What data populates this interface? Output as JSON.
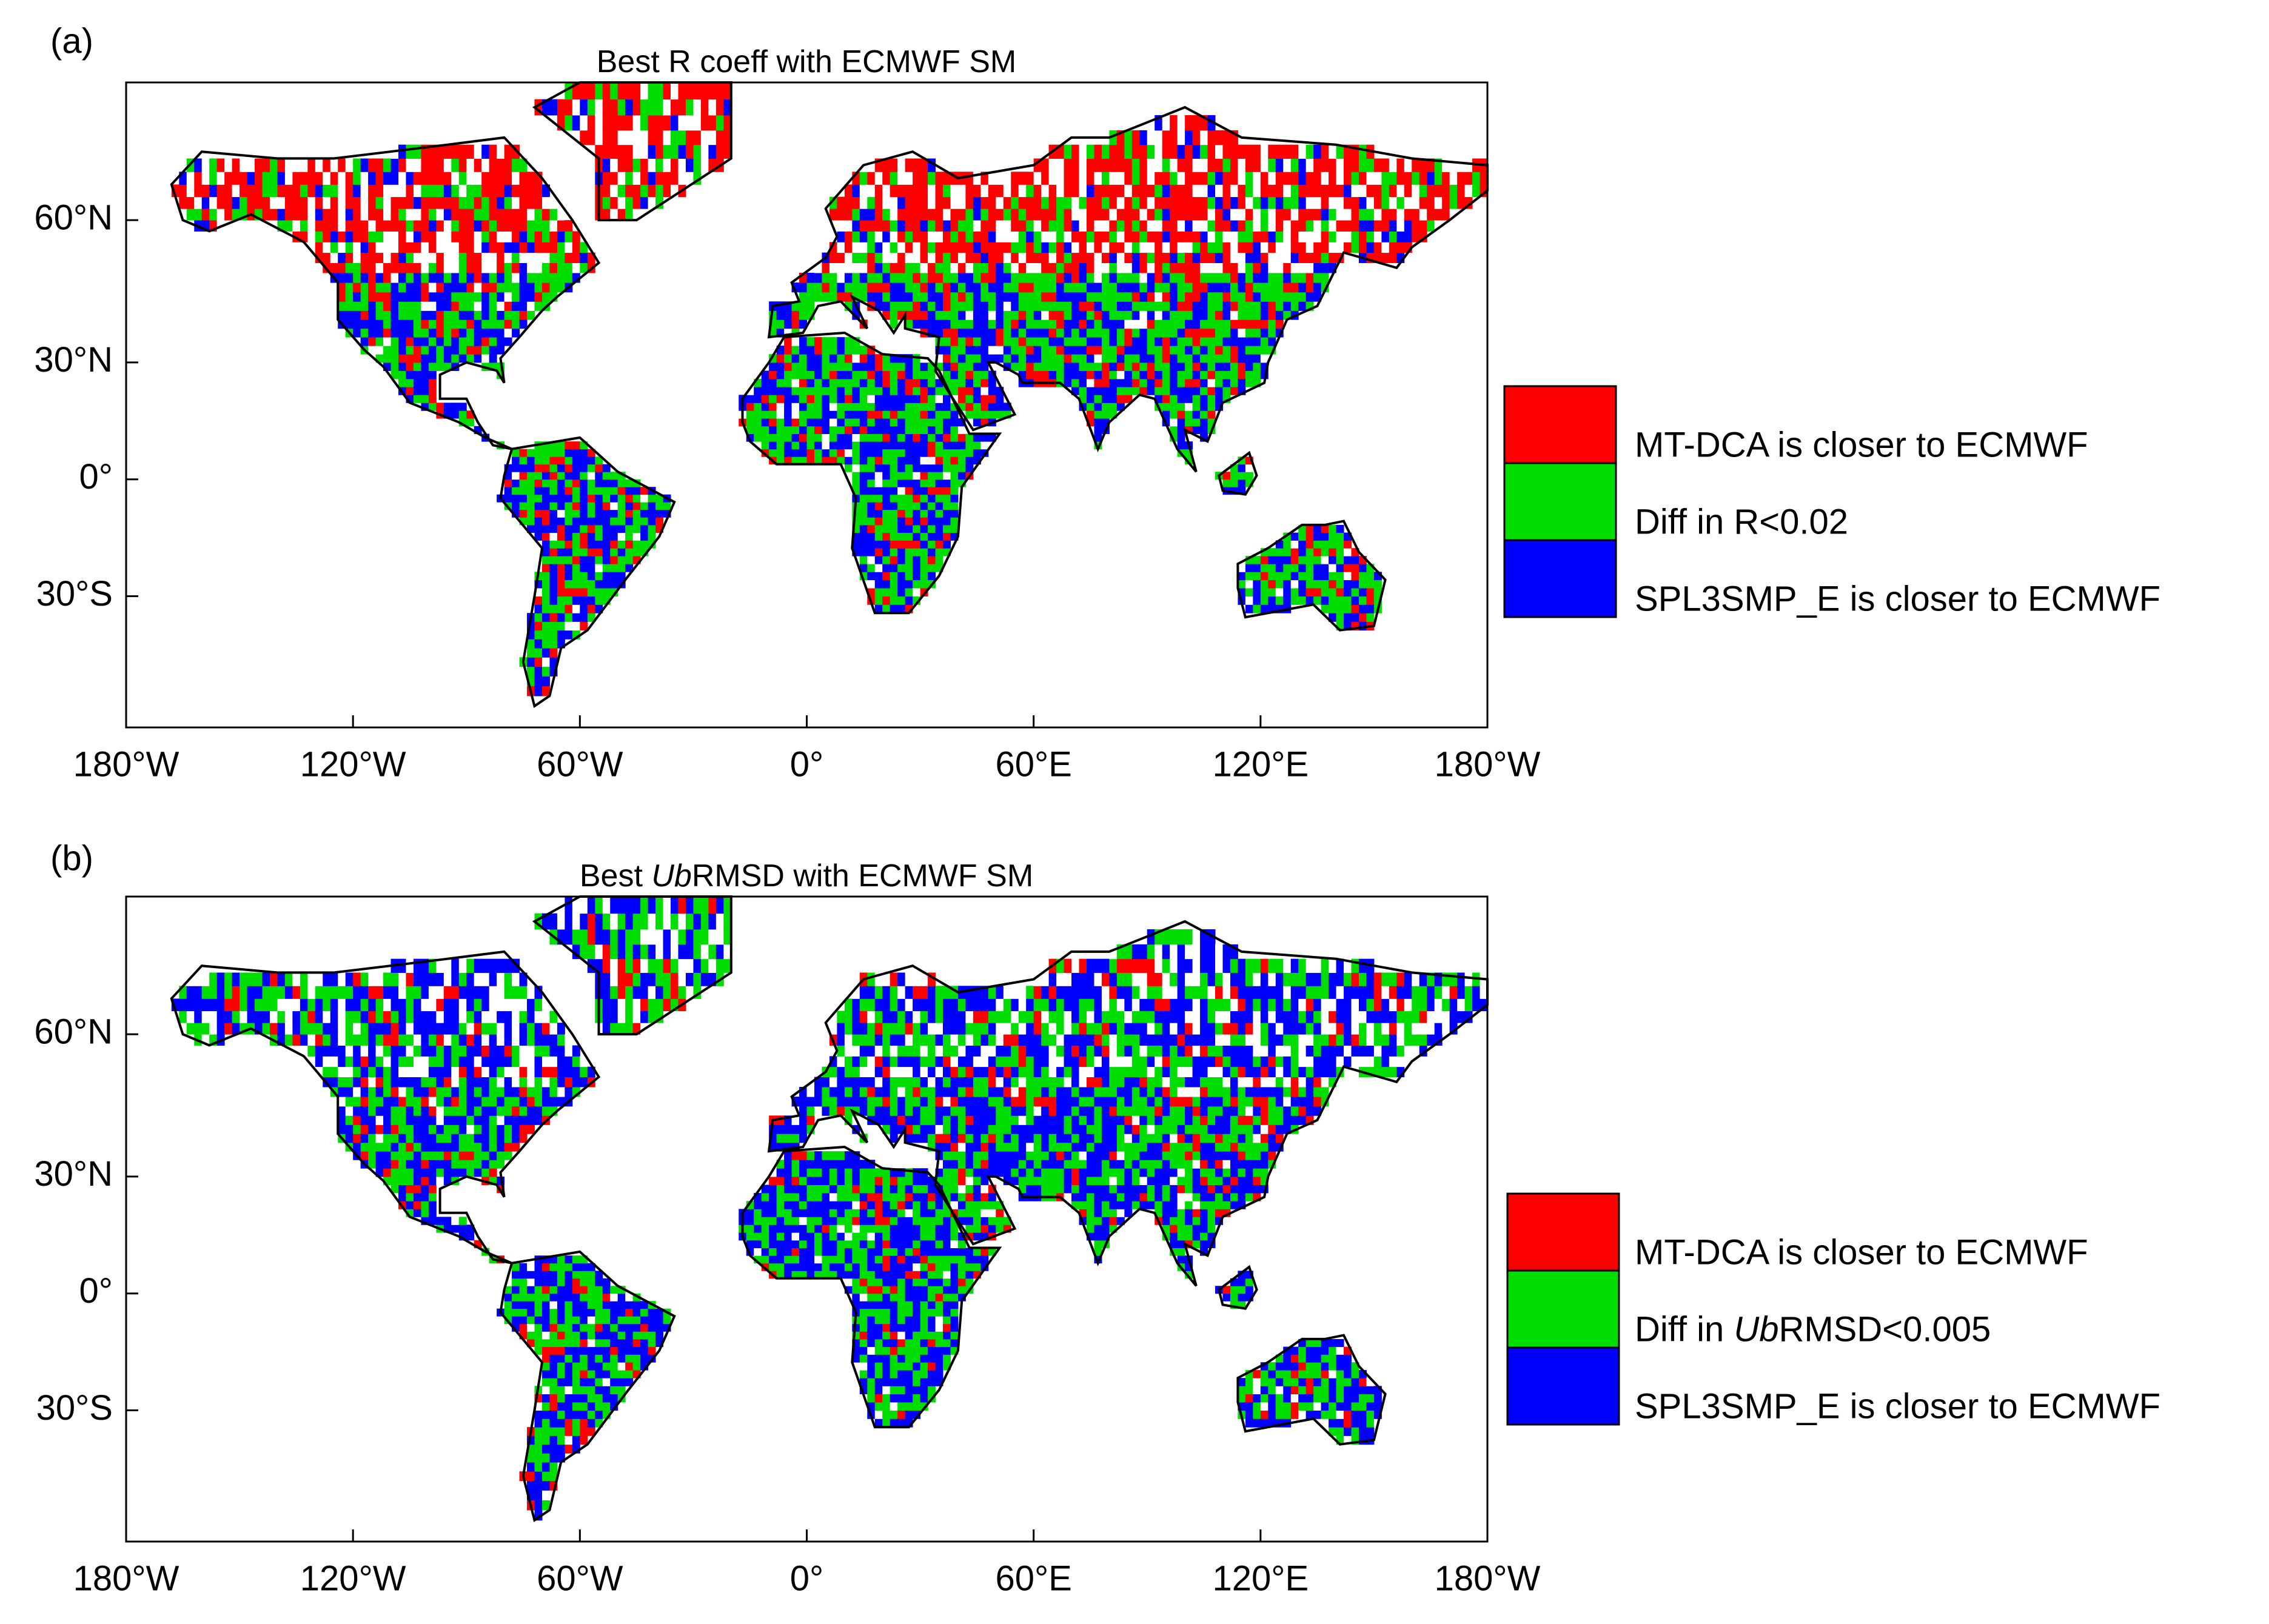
{
  "panels": [
    {
      "label": "(a)",
      "title": [
        {
          "text": "Best R coeff with ECMWF SM"
        }
      ],
      "xlim": [
        -180,
        180
      ],
      "ylim": [
        -58,
        80
      ],
      "xticks": [
        {
          "value": -180,
          "label": "180°W"
        },
        {
          "value": -120,
          "label": "120°W"
        },
        {
          "value": -60,
          "label": "60°W"
        },
        {
          "value": 0,
          "label": "0°"
        },
        {
          "value": 60,
          "label": "60°E"
        },
        {
          "value": 120,
          "label": "120°E"
        },
        {
          "value": 180,
          "label": "180°W"
        }
      ],
      "yticks": [
        {
          "value": 60,
          "label": "60°N"
        },
        {
          "value": 30,
          "label": "30°N"
        },
        {
          "value": 0,
          "label": "0°"
        },
        {
          "value": -30,
          "label": "30°S"
        }
      ],
      "legend": [
        {
          "color": "#ff0000",
          "label": [
            {
              "text": "MT-DCA is closer to ECMWF"
            }
          ]
        },
        {
          "color": "#00dd00",
          "label": [
            {
              "text": "Diff in R<0.02"
            }
          ]
        },
        {
          "color": "#0000ff",
          "label": [
            {
              "text": "SPL3SMP_E is closer to ECMWF"
            }
          ]
        }
      ]
    },
    {
      "label": "(b)",
      "title": [
        {
          "text": "Best "
        },
        {
          "text": "Ub",
          "italic": true
        },
        {
          "text": "RMSD with ECMWF SM"
        }
      ],
      "xlim": [
        -180,
        180
      ],
      "ylim": [
        -58,
        80
      ],
      "xticks": [
        {
          "value": -180,
          "label": "180°W"
        },
        {
          "value": -120,
          "label": "120°W"
        },
        {
          "value": -60,
          "label": "60°W"
        },
        {
          "value": 0,
          "label": "0°"
        },
        {
          "value": 60,
          "label": "60°E"
        },
        {
          "value": 120,
          "label": "120°E"
        },
        {
          "value": 180,
          "label": "180°W"
        }
      ],
      "yticks": [
        {
          "value": 60,
          "label": "60°N"
        },
        {
          "value": 30,
          "label": "30°N"
        },
        {
          "value": 0,
          "label": "0°"
        },
        {
          "value": -30,
          "label": "30°S"
        }
      ],
      "legend": [
        {
          "color": "#ff0000",
          "label": [
            {
              "text": "MT-DCA is closer to ECMWF"
            }
          ]
        },
        {
          "color": "#00dd00",
          "label": [
            {
              "text": "Diff in "
            },
            {
              "text": "Ub",
              "italic": true
            },
            {
              "text": "RMSD<0.005"
            }
          ]
        },
        {
          "color": "#0000ff",
          "label": [
            {
              "text": "SPL3SMP_E is closer to ECMWF"
            }
          ]
        }
      ]
    }
  ]
}
